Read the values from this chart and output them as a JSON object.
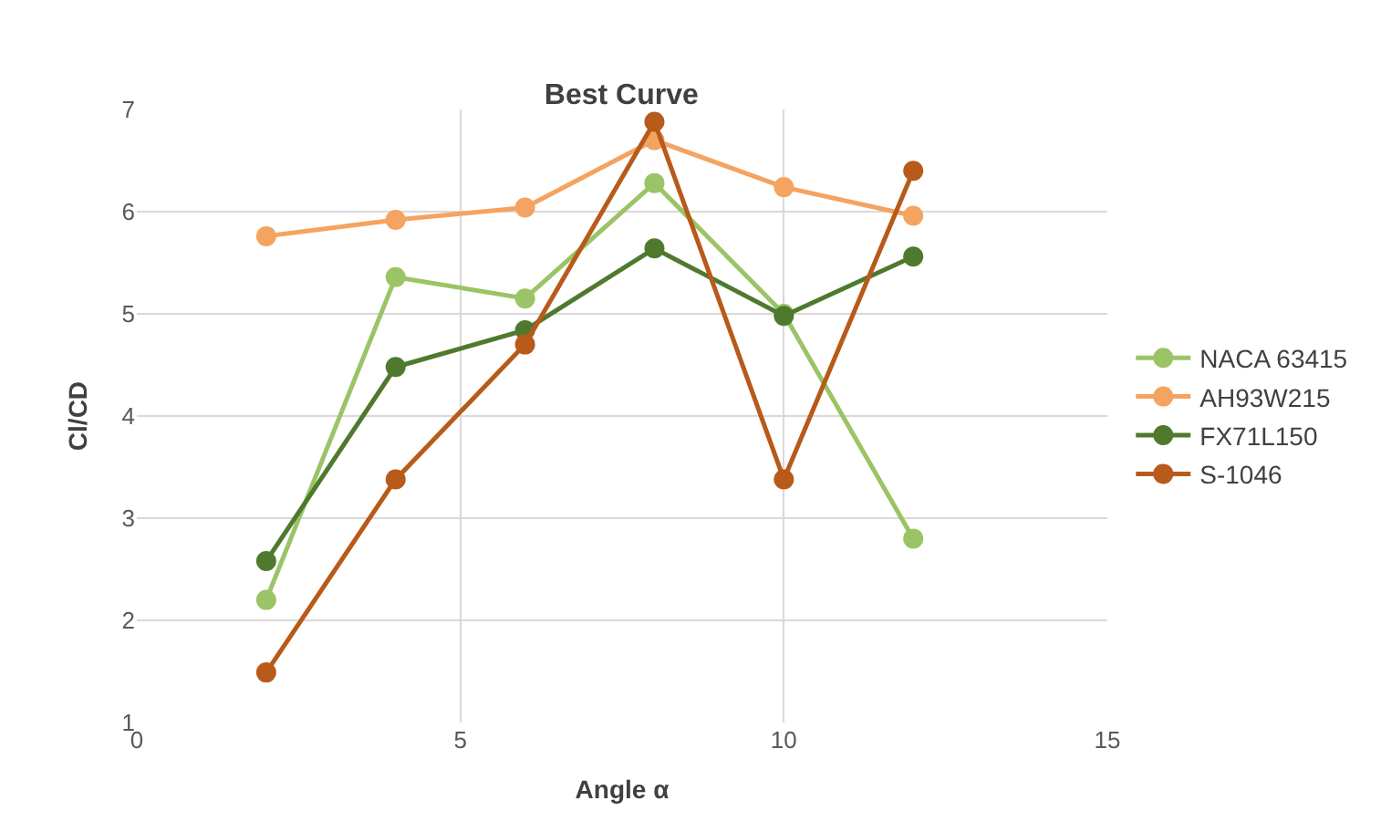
{
  "chart_data": {
    "type": "line",
    "title": "Best Curve",
    "xlabel": "Angle α",
    "ylabel": "Cl/CD",
    "x": [
      2,
      4,
      6,
      8,
      10,
      12
    ],
    "series": [
      {
        "name": "NACA 63415",
        "color": "#9bc466",
        "values": [
          2.2,
          5.36,
          5.15,
          6.28,
          5.0,
          2.8
        ]
      },
      {
        "name": "AH93W215",
        "color": "#f4a460",
        "values": [
          5.76,
          5.92,
          6.04,
          6.7,
          6.24,
          5.96
        ]
      },
      {
        "name": "FX71L150",
        "color": "#4f7a2e",
        "values": [
          2.58,
          4.48,
          4.84,
          5.64,
          4.98,
          5.56
        ]
      },
      {
        "name": "S-1046",
        "color": "#b85a1a",
        "values": [
          1.49,
          3.38,
          4.7,
          6.88,
          3.38,
          6.4
        ]
      }
    ],
    "xlim": [
      0,
      15
    ],
    "xticks": [
      0,
      5,
      10,
      15
    ],
    "ylim": [
      1,
      7
    ],
    "yticks": [
      1,
      2,
      3,
      4,
      5,
      6,
      7
    ],
    "grid": true,
    "legend": "right",
    "marker": "circle",
    "line_style": "solid"
  }
}
